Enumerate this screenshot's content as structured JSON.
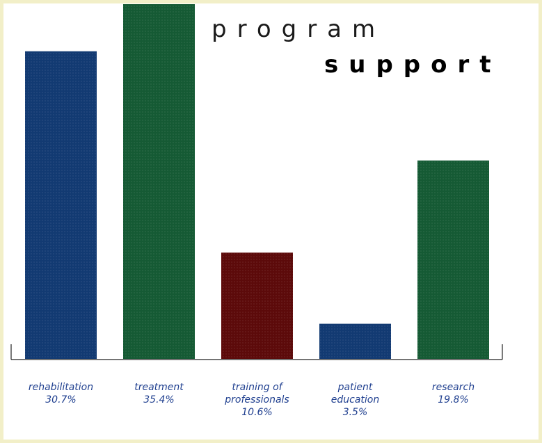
{
  "chart_data": {
    "type": "bar",
    "title_line1": "program",
    "title_line2": "support",
    "categories": [
      "rehabilitation",
      "treatment",
      "training of professionals",
      "patient education",
      "research"
    ],
    "category_label_lines": [
      [
        "rehabilitation"
      ],
      [
        "treatment"
      ],
      [
        "training of",
        "professionals"
      ],
      [
        "patient",
        "education"
      ],
      [
        "research"
      ]
    ],
    "values": [
      30.7,
      35.4,
      10.6,
      3.5,
      19.8
    ],
    "value_labels": [
      "30.7%",
      "35.4%",
      "10.6%",
      "3.5%",
      "19.8%"
    ],
    "bar_colors": [
      "#123a72",
      "#155a34",
      "#5c0a0a",
      "#123a72",
      "#155a34"
    ],
    "ylim": [
      0,
      35.4
    ],
    "xlabel": "",
    "ylabel": "",
    "grid": false,
    "legend": "none"
  }
}
